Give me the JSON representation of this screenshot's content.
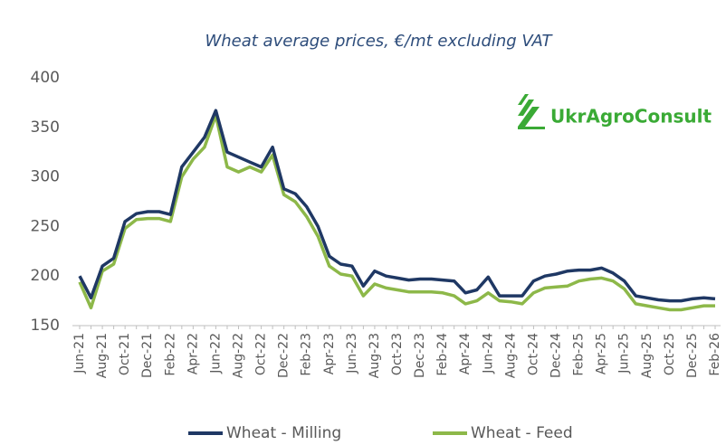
{
  "chart_data": {
    "type": "line",
    "title": "Wheat average prices, €/mt excluding VAT",
    "logo_text": "UkrAgroConsult",
    "categories": [
      "Jun-21",
      null,
      "Aug-21",
      null,
      "Oct-21",
      null,
      "Dec-21",
      null,
      "Feb-22",
      null,
      "Apr-22",
      null,
      "Jun-22",
      null,
      "Aug-22",
      null,
      "Oct-22",
      null,
      "Dec-22",
      null,
      "Feb-23",
      null,
      "Apr-23",
      null,
      "Jun-23",
      null,
      "Aug-23",
      null,
      "Oct-23",
      null,
      "Dec-23",
      null,
      "Feb-24",
      null,
      "Apr-24",
      null,
      "Jun-24",
      null,
      "Aug-24",
      null,
      "Oct-24",
      null,
      "Dec-24",
      null,
      "Feb-25",
      null,
      "Apr-25",
      null,
      "Jun-25",
      null,
      "Aug-25",
      null,
      "Oct-25",
      null,
      "Dec-25",
      null,
      "Feb-26"
    ],
    "series": [
      {
        "name": "Wheat - Milling",
        "color": "#1f3864",
        "values": [
          200,
          178,
          210,
          218,
          255,
          263,
          265,
          265,
          262,
          310,
          325,
          340,
          367,
          325,
          320,
          315,
          310,
          330,
          288,
          283,
          270,
          250,
          220,
          212,
          210,
          190,
          205,
          200,
          198,
          196,
          197,
          197,
          196,
          195,
          183,
          186,
          199,
          180,
          180,
          180,
          195,
          200,
          202,
          205,
          206,
          206,
          208,
          203,
          195,
          180,
          178,
          176,
          175,
          175,
          177,
          178,
          177
        ]
      },
      {
        "name": "Wheat - Feed",
        "color": "#8db849",
        "values": [
          194,
          168,
          205,
          212,
          248,
          257,
          258,
          258,
          255,
          300,
          318,
          330,
          362,
          310,
          305,
          310,
          305,
          322,
          282,
          275,
          260,
          240,
          210,
          202,
          200,
          180,
          192,
          188,
          186,
          184,
          184,
          184,
          183,
          180,
          172,
          175,
          183,
          175,
          174,
          172,
          183,
          188,
          189,
          190,
          195,
          197,
          198,
          195,
          187,
          172,
          170,
          168,
          166,
          166,
          168,
          170,
          170
        ]
      }
    ],
    "ylim": [
      150,
      400
    ],
    "yticks": [
      150,
      200,
      250,
      300,
      350,
      400
    ],
    "grid": false,
    "legend": "bottom"
  }
}
